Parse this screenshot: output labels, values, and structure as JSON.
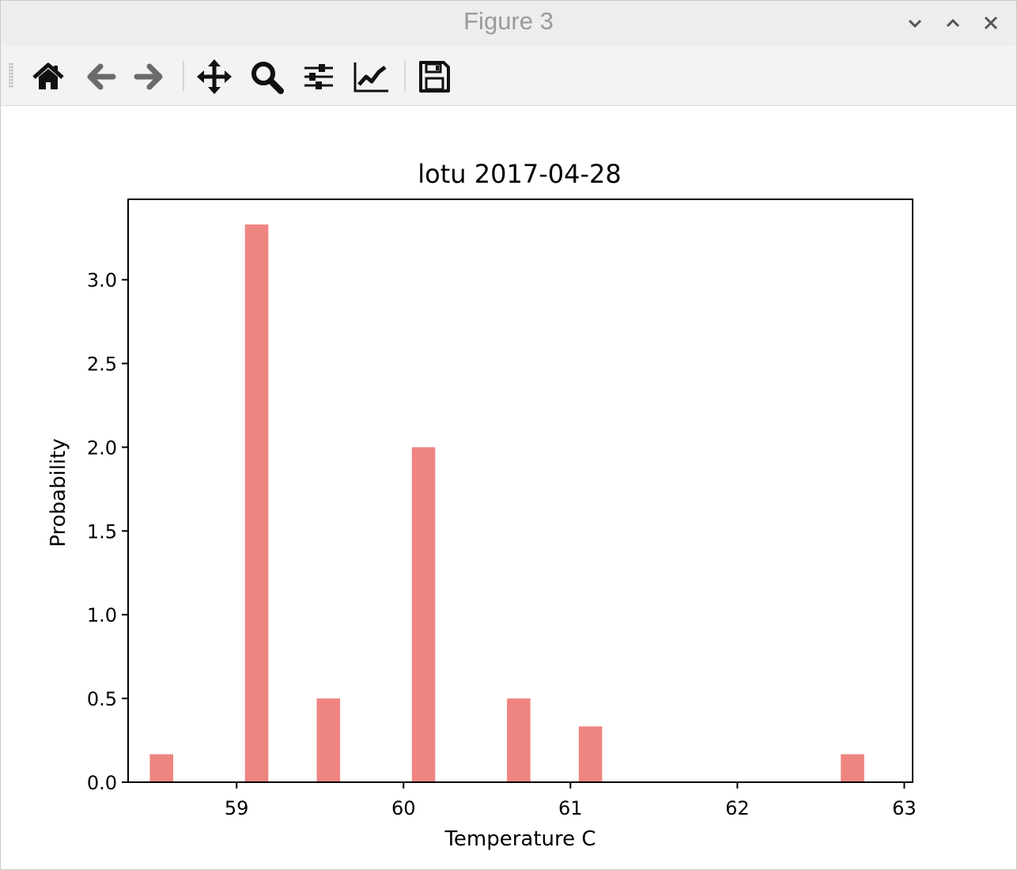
{
  "window": {
    "title": "Figure 3"
  },
  "toolbar": {
    "tools": [
      {
        "name": "home-icon",
        "label": "Home"
      },
      {
        "name": "back-arrow-icon",
        "label": "Back"
      },
      {
        "name": "forward-arrow-icon",
        "label": "Forward"
      },
      {
        "name": "pan-move-icon",
        "label": "Pan"
      },
      {
        "name": "zoom-magnifier-icon",
        "label": "Zoom"
      },
      {
        "name": "subplots-sliders-icon",
        "label": "Subplots"
      },
      {
        "name": "edit-axes-curve-icon",
        "label": "Customize"
      },
      {
        "name": "save-floppy-icon",
        "label": "Save"
      }
    ]
  },
  "colors": {
    "bar": "#ef8580",
    "titlebar_bg": "#ededed",
    "toolbar_bg": "#f3f3f3",
    "icon": "#111111"
  },
  "chart_data": {
    "type": "bar",
    "title": "lotu 2017-04-28",
    "xlabel": "Temperature C",
    "ylabel": "Probability",
    "xlim": [
      58.35,
      63.05
    ],
    "ylim": [
      0,
      3.48
    ],
    "xticks": [
      "59",
      "60",
      "61",
      "62",
      "63"
    ],
    "yticks": [
      "0.0",
      "0.5",
      "1.0",
      "1.5",
      "2.0",
      "2.5",
      "3.0"
    ],
    "grid": false,
    "bars": [
      {
        "x": 58.55,
        "value": 0.167
      },
      {
        "x": 59.12,
        "value": 3.33
      },
      {
        "x": 59.55,
        "value": 0.5
      },
      {
        "x": 60.12,
        "value": 2.0
      },
      {
        "x": 60.69,
        "value": 0.5
      },
      {
        "x": 61.12,
        "value": 0.333
      },
      {
        "x": 62.69,
        "value": 0.167
      }
    ],
    "bar_width": 0.14
  }
}
